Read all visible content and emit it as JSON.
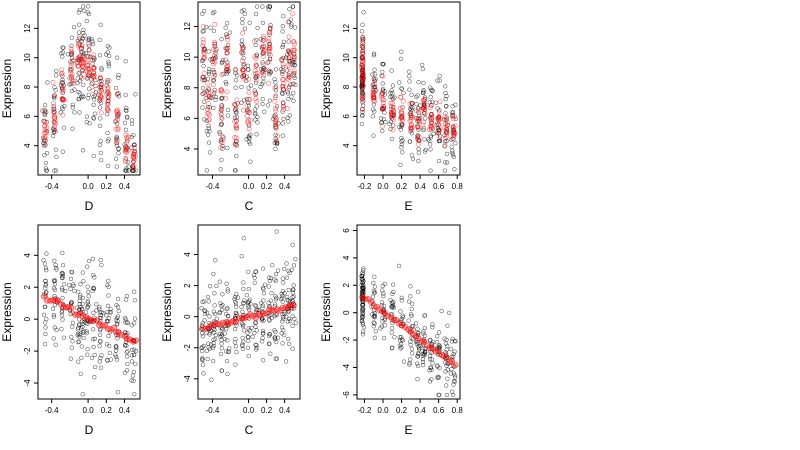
{
  "figure": {
    "colors": {
      "black_points": "#000000",
      "red_points": "#ff0000",
      "frame": "#000000"
    },
    "panels": [
      {
        "xlabel": "D",
        "ylabel": "Expression",
        "xlim": [
          -0.55,
          0.57
        ],
        "ylim": [
          2.0,
          13.8
        ],
        "xticks": [
          "-0.4",
          "0.0",
          "0.2",
          "0.4"
        ],
        "xtick_values": [
          -0.4,
          0.0,
          0.2,
          0.4
        ],
        "yticks": [
          "4",
          "6",
          "8",
          "10",
          "12"
        ],
        "ytick_values": [
          4,
          6,
          8,
          10,
          12
        ],
        "chart_data": {
          "type": "scatter",
          "trend": "quadratic",
          "x_levels": [
            -0.47,
            -0.37,
            -0.28,
            -0.18,
            -0.1,
            -0.06,
            0.0,
            0.06,
            0.14,
            0.22,
            0.32,
            0.42,
            0.5
          ],
          "red_means": [
            5.2,
            6.4,
            7.8,
            9.5,
            10.0,
            9.8,
            9.4,
            8.4,
            7.6,
            7.2,
            5.8,
            3.8,
            3.2
          ],
          "black_spread": 2.0,
          "red_spread": 0.7
        }
      },
      {
        "xlabel": "C",
        "ylabel": "Expression",
        "xlim": [
          -0.56,
          0.57
        ],
        "ylim": [
          2.3,
          13.6
        ],
        "xticks": [
          "-0.4",
          "0.0",
          "0.2",
          "0.4"
        ],
        "xtick_values": [
          -0.4,
          0.0,
          0.2,
          0.4
        ],
        "yticks": [
          "4",
          "6",
          "8",
          "10",
          "12"
        ],
        "ytick_values": [
          4,
          6,
          8,
          10,
          12
        ],
        "chart_data": {
          "type": "scatter",
          "trend": "none",
          "x_levels": [
            -0.5,
            -0.44,
            -0.38,
            -0.3,
            -0.24,
            -0.14,
            -0.06,
            0.0,
            0.08,
            0.16,
            0.23,
            0.3,
            0.38,
            0.44,
            0.5
          ],
          "red_means": [
            9.5,
            7.2,
            9.6,
            6.5,
            9.8,
            6.0,
            9.7,
            6.8,
            9.2,
            9.9,
            10.3,
            6.2,
            8.3,
            9.8,
            10.4
          ],
          "black_spread": 2.2,
          "red_spread": 1.0
        }
      },
      {
        "xlabel": "E",
        "ylabel": "Expression",
        "xlim": [
          -0.28,
          0.83
        ],
        "ylim": [
          2.0,
          13.8
        ],
        "xticks": [
          "-0.2",
          "0.0",
          "0.2",
          "0.4",
          "0.6",
          "0.8"
        ],
        "xtick_values": [
          -0.2,
          0.0,
          0.2,
          0.4,
          0.6,
          0.8
        ],
        "yticks": [
          "4",
          "6",
          "8",
          "10",
          "12"
        ],
        "ytick_values": [
          4,
          6,
          8,
          10,
          12
        ],
        "chart_data": {
          "type": "scatter",
          "trend": "decreasing",
          "x_levels": [
            -0.22,
            -0.1,
            0.0,
            0.1,
            0.2,
            0.3,
            0.38,
            0.44,
            0.52,
            0.6,
            0.68,
            0.76
          ],
          "red_means": [
            9.0,
            7.4,
            6.8,
            6.4,
            6.2,
            6.0,
            5.2,
            6.4,
            5.6,
            5.6,
            5.2,
            5.0
          ],
          "black_spread": 1.6,
          "red_spread": 0.6
        }
      },
      {
        "xlabel": "D",
        "ylabel": "Expression",
        "xlim": [
          -0.55,
          0.57
        ],
        "ylim": [
          -5.0,
          5.9
        ],
        "xticks": [
          "-0.4",
          "0.0",
          "0.2",
          "0.4"
        ],
        "xtick_values": [
          -0.4,
          0.0,
          0.2,
          0.4
        ],
        "yticks": [
          "-4",
          "-2",
          "0",
          "2",
          "4"
        ],
        "ytick_values": [
          -4,
          -2,
          0,
          2,
          4
        ],
        "chart_data": {
          "type": "scatter",
          "trend": "linear",
          "red_line": {
            "x0": -0.48,
            "y0": 1.4,
            "x1": 0.52,
            "y1": -1.4
          },
          "x_levels": [
            -0.47,
            -0.37,
            -0.28,
            -0.18,
            -0.1,
            -0.06,
            0.0,
            0.06,
            0.14,
            0.22,
            0.32,
            0.42,
            0.5
          ],
          "black_spread": 1.6
        }
      },
      {
        "xlabel": "C",
        "ylabel": "Expression",
        "xlim": [
          -0.56,
          0.57
        ],
        "ylim": [
          -5.3,
          5.9
        ],
        "xticks": [
          "-0.4",
          "0.0",
          "0.2",
          "0.4"
        ],
        "xtick_values": [
          -0.4,
          0.0,
          0.2,
          0.4
        ],
        "yticks": [
          "-4",
          "-2",
          "0",
          "2",
          "4"
        ],
        "ytick_values": [
          -4,
          -2,
          0,
          2,
          4
        ],
        "chart_data": {
          "type": "scatter",
          "trend": "linear",
          "red_line": {
            "x0": -0.5,
            "y0": -0.7,
            "x1": 0.5,
            "y1": 0.7
          },
          "x_levels": [
            -0.5,
            -0.44,
            -0.38,
            -0.3,
            -0.24,
            -0.14,
            -0.06,
            0.0,
            0.08,
            0.16,
            0.23,
            0.3,
            0.38,
            0.44,
            0.5
          ],
          "black_spread": 1.6
        }
      },
      {
        "xlabel": "E",
        "ylabel": "Expression",
        "xlim": [
          -0.28,
          0.83
        ],
        "ylim": [
          -6.3,
          6.4
        ],
        "xticks": [
          "-0.2",
          "0.0",
          "0.2",
          "0.4",
          "0.6",
          "0.8"
        ],
        "xtick_values": [
          -0.2,
          0.0,
          0.2,
          0.4,
          0.6,
          0.8
        ],
        "yticks": [
          "-6",
          "-4",
          "-2",
          "0",
          "2",
          "4",
          "6"
        ],
        "ytick_values": [
          -6,
          -4,
          -2,
          0,
          2,
          4,
          6
        ],
        "chart_data": {
          "type": "scatter",
          "trend": "linear",
          "red_line": {
            "x0": -0.22,
            "y0": 1.2,
            "x1": 0.78,
            "y1": -3.8
          },
          "x_levels": [
            -0.22,
            -0.1,
            0.0,
            0.1,
            0.2,
            0.3,
            0.38,
            0.44,
            0.52,
            0.6,
            0.68,
            0.76
          ],
          "black_spread": 1.2
        }
      }
    ]
  }
}
